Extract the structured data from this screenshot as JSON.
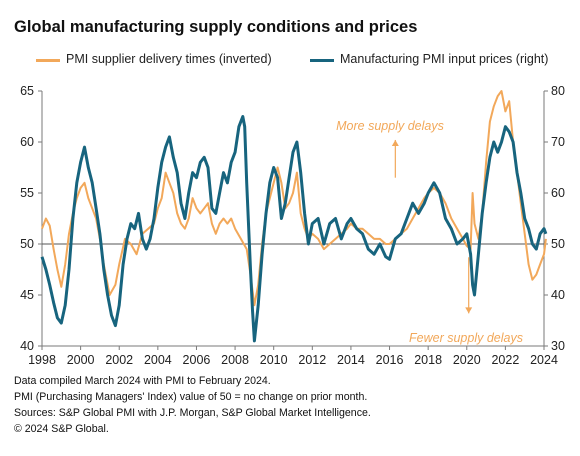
{
  "title": "Global manufacturing supply conditions and prices",
  "colors": {
    "supplier": "#F2A85A",
    "prices": "#17647E",
    "axis": "#7a7a7a",
    "annotation": "#F2A85A"
  },
  "chart_data": {
    "type": "line",
    "title": "Global manufacturing supply conditions and prices",
    "x_range": [
      1998.0,
      2024.0
    ],
    "x_ticks": [
      "1998",
      "2000",
      "2002",
      "2004",
      "2006",
      "2008",
      "2010",
      "2012",
      "2014",
      "2016",
      "2018",
      "2020",
      "2022",
      "2024"
    ],
    "left_axis": {
      "range": [
        40,
        65
      ],
      "ticks": [
        "40",
        "45",
        "50",
        "55",
        "60",
        "65"
      ]
    },
    "right_axis": {
      "range": [
        30,
        80
      ],
      "ticks": [
        "30",
        "40",
        "50",
        "60",
        "70",
        "80"
      ]
    },
    "reference_line": 50,
    "series": [
      {
        "name": "PMI supplier delivery times (inverted)",
        "axis": "left",
        "points": [
          [
            1998.0,
            51.5
          ],
          [
            1998.2,
            52.5
          ],
          [
            1998.4,
            51.8
          ],
          [
            1998.6,
            49.5
          ],
          [
            1998.8,
            47.5
          ],
          [
            1999.0,
            45.8
          ],
          [
            1999.2,
            48.0
          ],
          [
            1999.4,
            51.0
          ],
          [
            1999.6,
            53.0
          ],
          [
            1999.8,
            54.5
          ],
          [
            2000.0,
            55.5
          ],
          [
            2000.2,
            56.0
          ],
          [
            2000.4,
            54.5
          ],
          [
            2000.6,
            53.5
          ],
          [
            2000.8,
            52.5
          ],
          [
            2001.0,
            50.5
          ],
          [
            2001.2,
            48.0
          ],
          [
            2001.5,
            45.0
          ],
          [
            2001.8,
            46.0
          ],
          [
            2002.0,
            48.0
          ],
          [
            2002.3,
            50.5
          ],
          [
            2002.6,
            50.0
          ],
          [
            2002.9,
            49.0
          ],
          [
            2003.2,
            51.0
          ],
          [
            2003.5,
            51.5
          ],
          [
            2003.8,
            52.0
          ],
          [
            2004.0,
            53.5
          ],
          [
            2004.2,
            54.5
          ],
          [
            2004.4,
            57.0
          ],
          [
            2004.6,
            56.0
          ],
          [
            2004.8,
            55.0
          ],
          [
            2005.0,
            53.0
          ],
          [
            2005.2,
            52.0
          ],
          [
            2005.4,
            51.5
          ],
          [
            2005.6,
            52.5
          ],
          [
            2005.8,
            54.5
          ],
          [
            2006.0,
            53.5
          ],
          [
            2006.2,
            53.0
          ],
          [
            2006.4,
            53.5
          ],
          [
            2006.6,
            54.0
          ],
          [
            2006.8,
            52.0
          ],
          [
            2007.0,
            51.0
          ],
          [
            2007.2,
            52.0
          ],
          [
            2007.4,
            52.5
          ],
          [
            2007.6,
            52.0
          ],
          [
            2007.8,
            52.5
          ],
          [
            2008.0,
            51.5
          ],
          [
            2008.3,
            50.5
          ],
          [
            2008.6,
            49.5
          ],
          [
            2008.8,
            47.0
          ],
          [
            2009.0,
            44.0
          ],
          [
            2009.2,
            46.0
          ],
          [
            2009.4,
            50.0
          ],
          [
            2009.6,
            53.0
          ],
          [
            2009.8,
            54.5
          ],
          [
            2010.0,
            56.0
          ],
          [
            2010.2,
            57.5
          ],
          [
            2010.4,
            56.0
          ],
          [
            2010.6,
            53.5
          ],
          [
            2010.8,
            54.0
          ],
          [
            2011.0,
            55.0
          ],
          [
            2011.2,
            57.0
          ],
          [
            2011.4,
            53.0
          ],
          [
            2011.6,
            51.5
          ],
          [
            2011.8,
            50.5
          ],
          [
            2012.0,
            51.0
          ],
          [
            2012.3,
            50.5
          ],
          [
            2012.6,
            49.5
          ],
          [
            2012.9,
            50.0
          ],
          [
            2013.2,
            50.5
          ],
          [
            2013.5,
            51.0
          ],
          [
            2013.8,
            51.5
          ],
          [
            2014.0,
            52.0
          ],
          [
            2014.3,
            51.5
          ],
          [
            2014.6,
            51.5
          ],
          [
            2014.9,
            51.0
          ],
          [
            2015.2,
            50.5
          ],
          [
            2015.5,
            50.5
          ],
          [
            2015.8,
            50.0
          ],
          [
            2016.0,
            50.0
          ],
          [
            2016.3,
            50.5
          ],
          [
            2016.6,
            51.0
          ],
          [
            2016.9,
            51.5
          ],
          [
            2017.2,
            52.5
          ],
          [
            2017.5,
            53.5
          ],
          [
            2017.8,
            54.5
          ],
          [
            2018.0,
            55.0
          ],
          [
            2018.3,
            55.5
          ],
          [
            2018.6,
            55.0
          ],
          [
            2018.9,
            54.0
          ],
          [
            2019.2,
            52.5
          ],
          [
            2019.5,
            51.5
          ],
          [
            2019.8,
            50.5
          ],
          [
            2020.0,
            49.8
          ],
          [
            2020.2,
            49.5
          ],
          [
            2020.3,
            55.0
          ],
          [
            2020.4,
            52.0
          ],
          [
            2020.6,
            50.5
          ],
          [
            2020.8,
            53.0
          ],
          [
            2021.0,
            58.0
          ],
          [
            2021.2,
            62.0
          ],
          [
            2021.4,
            63.5
          ],
          [
            2021.6,
            64.5
          ],
          [
            2021.8,
            65.0
          ],
          [
            2022.0,
            63.0
          ],
          [
            2022.2,
            64.0
          ],
          [
            2022.4,
            60.0
          ],
          [
            2022.6,
            57.0
          ],
          [
            2022.8,
            54.0
          ],
          [
            2023.0,
            51.0
          ],
          [
            2023.2,
            48.0
          ],
          [
            2023.4,
            46.5
          ],
          [
            2023.6,
            47.0
          ],
          [
            2023.8,
            48.0
          ],
          [
            2024.0,
            49.0
          ],
          [
            2024.1,
            50.5
          ]
        ]
      },
      {
        "name": "Manufacturing PMI input prices (right)",
        "axis": "right",
        "points": [
          [
            1998.0,
            47.5
          ],
          [
            1998.2,
            45.0
          ],
          [
            1998.4,
            42.0
          ],
          [
            1998.6,
            38.5
          ],
          [
            1998.8,
            35.5
          ],
          [
            1999.0,
            34.5
          ],
          [
            1999.2,
            38.0
          ],
          [
            1999.4,
            45.0
          ],
          [
            1999.6,
            55.0
          ],
          [
            1999.8,
            62.0
          ],
          [
            2000.0,
            66.0
          ],
          [
            2000.2,
            69.0
          ],
          [
            2000.4,
            65.0
          ],
          [
            2000.6,
            62.0
          ],
          [
            2000.8,
            57.0
          ],
          [
            2001.0,
            52.0
          ],
          [
            2001.2,
            45.0
          ],
          [
            2001.4,
            40.0
          ],
          [
            2001.6,
            36.0
          ],
          [
            2001.8,
            34.0
          ],
          [
            2002.0,
            38.0
          ],
          [
            2002.2,
            46.0
          ],
          [
            2002.4,
            51.0
          ],
          [
            2002.6,
            54.0
          ],
          [
            2002.8,
            53.0
          ],
          [
            2003.0,
            56.0
          ],
          [
            2003.2,
            51.0
          ],
          [
            2003.4,
            49.0
          ],
          [
            2003.6,
            51.0
          ],
          [
            2003.8,
            55.0
          ],
          [
            2004.0,
            61.0
          ],
          [
            2004.2,
            66.0
          ],
          [
            2004.4,
            69.0
          ],
          [
            2004.6,
            71.0
          ],
          [
            2004.8,
            67.0
          ],
          [
            2005.0,
            64.0
          ],
          [
            2005.2,
            58.0
          ],
          [
            2005.4,
            55.0
          ],
          [
            2005.6,
            60.0
          ],
          [
            2005.8,
            64.0
          ],
          [
            2006.0,
            63.0
          ],
          [
            2006.2,
            66.0
          ],
          [
            2006.4,
            67.0
          ],
          [
            2006.6,
            65.0
          ],
          [
            2006.8,
            57.0
          ],
          [
            2007.0,
            56.0
          ],
          [
            2007.2,
            60.0
          ],
          [
            2007.4,
            64.0
          ],
          [
            2007.6,
            62.0
          ],
          [
            2007.8,
            66.0
          ],
          [
            2008.0,
            68.0
          ],
          [
            2008.2,
            73.0
          ],
          [
            2008.4,
            75.0
          ],
          [
            2008.5,
            73.0
          ],
          [
            2008.6,
            62.0
          ],
          [
            2008.8,
            45.0
          ],
          [
            2008.9,
            37.0
          ],
          [
            2009.0,
            31.0
          ],
          [
            2009.2,
            38.0
          ],
          [
            2009.4,
            48.0
          ],
          [
            2009.6,
            56.0
          ],
          [
            2009.8,
            62.0
          ],
          [
            2010.0,
            65.0
          ],
          [
            2010.2,
            63.0
          ],
          [
            2010.4,
            55.0
          ],
          [
            2010.6,
            58.0
          ],
          [
            2010.8,
            63.0
          ],
          [
            2011.0,
            68.0
          ],
          [
            2011.2,
            70.0
          ],
          [
            2011.4,
            64.0
          ],
          [
            2011.6,
            56.0
          ],
          [
            2011.8,
            50.0
          ],
          [
            2012.0,
            54.0
          ],
          [
            2012.3,
            55.0
          ],
          [
            2012.6,
            50.0
          ],
          [
            2012.9,
            54.0
          ],
          [
            2013.2,
            55.0
          ],
          [
            2013.5,
            51.0
          ],
          [
            2013.8,
            54.0
          ],
          [
            2014.0,
            55.0
          ],
          [
            2014.3,
            53.0
          ],
          [
            2014.6,
            52.0
          ],
          [
            2014.9,
            49.0
          ],
          [
            2015.2,
            48.0
          ],
          [
            2015.5,
            50.0
          ],
          [
            2015.8,
            47.5
          ],
          [
            2016.0,
            47.0
          ],
          [
            2016.3,
            51.0
          ],
          [
            2016.6,
            52.0
          ],
          [
            2016.9,
            55.0
          ],
          [
            2017.2,
            58.0
          ],
          [
            2017.5,
            56.0
          ],
          [
            2017.8,
            58.0
          ],
          [
            2018.0,
            60.0
          ],
          [
            2018.3,
            62.0
          ],
          [
            2018.6,
            60.0
          ],
          [
            2018.9,
            55.0
          ],
          [
            2019.2,
            53.0
          ],
          [
            2019.5,
            50.0
          ],
          [
            2019.8,
            51.0
          ],
          [
            2020.0,
            52.0
          ],
          [
            2020.2,
            48.0
          ],
          [
            2020.3,
            42.0
          ],
          [
            2020.4,
            40.0
          ],
          [
            2020.6,
            48.0
          ],
          [
            2020.8,
            56.0
          ],
          [
            2021.0,
            62.0
          ],
          [
            2021.2,
            67.0
          ],
          [
            2021.4,
            70.0
          ],
          [
            2021.6,
            68.0
          ],
          [
            2021.8,
            70.0
          ],
          [
            2022.0,
            73.0
          ],
          [
            2022.2,
            72.0
          ],
          [
            2022.4,
            70.0
          ],
          [
            2022.6,
            64.0
          ],
          [
            2022.8,
            60.0
          ],
          [
            2023.0,
            55.0
          ],
          [
            2023.2,
            53.0
          ],
          [
            2023.4,
            50.0
          ],
          [
            2023.6,
            49.0
          ],
          [
            2023.8,
            52.0
          ],
          [
            2024.0,
            53.0
          ],
          [
            2024.1,
            52.0
          ]
        ]
      }
    ],
    "annotations": [
      {
        "text": "More supply delays",
        "direction": "up"
      },
      {
        "text": "Fewer supply delays",
        "direction": "down"
      }
    ]
  },
  "notes": [
    "Data compiled March 2024 with PMI to February 2024.",
    "PMI (Purchasing Managers' Index) value of 50 = no change on prior month.",
    "Sources: S&P Global PMI with J.P. Morgan, S&P Global Market Intelligence.",
    "© 2024 S&P Global."
  ]
}
